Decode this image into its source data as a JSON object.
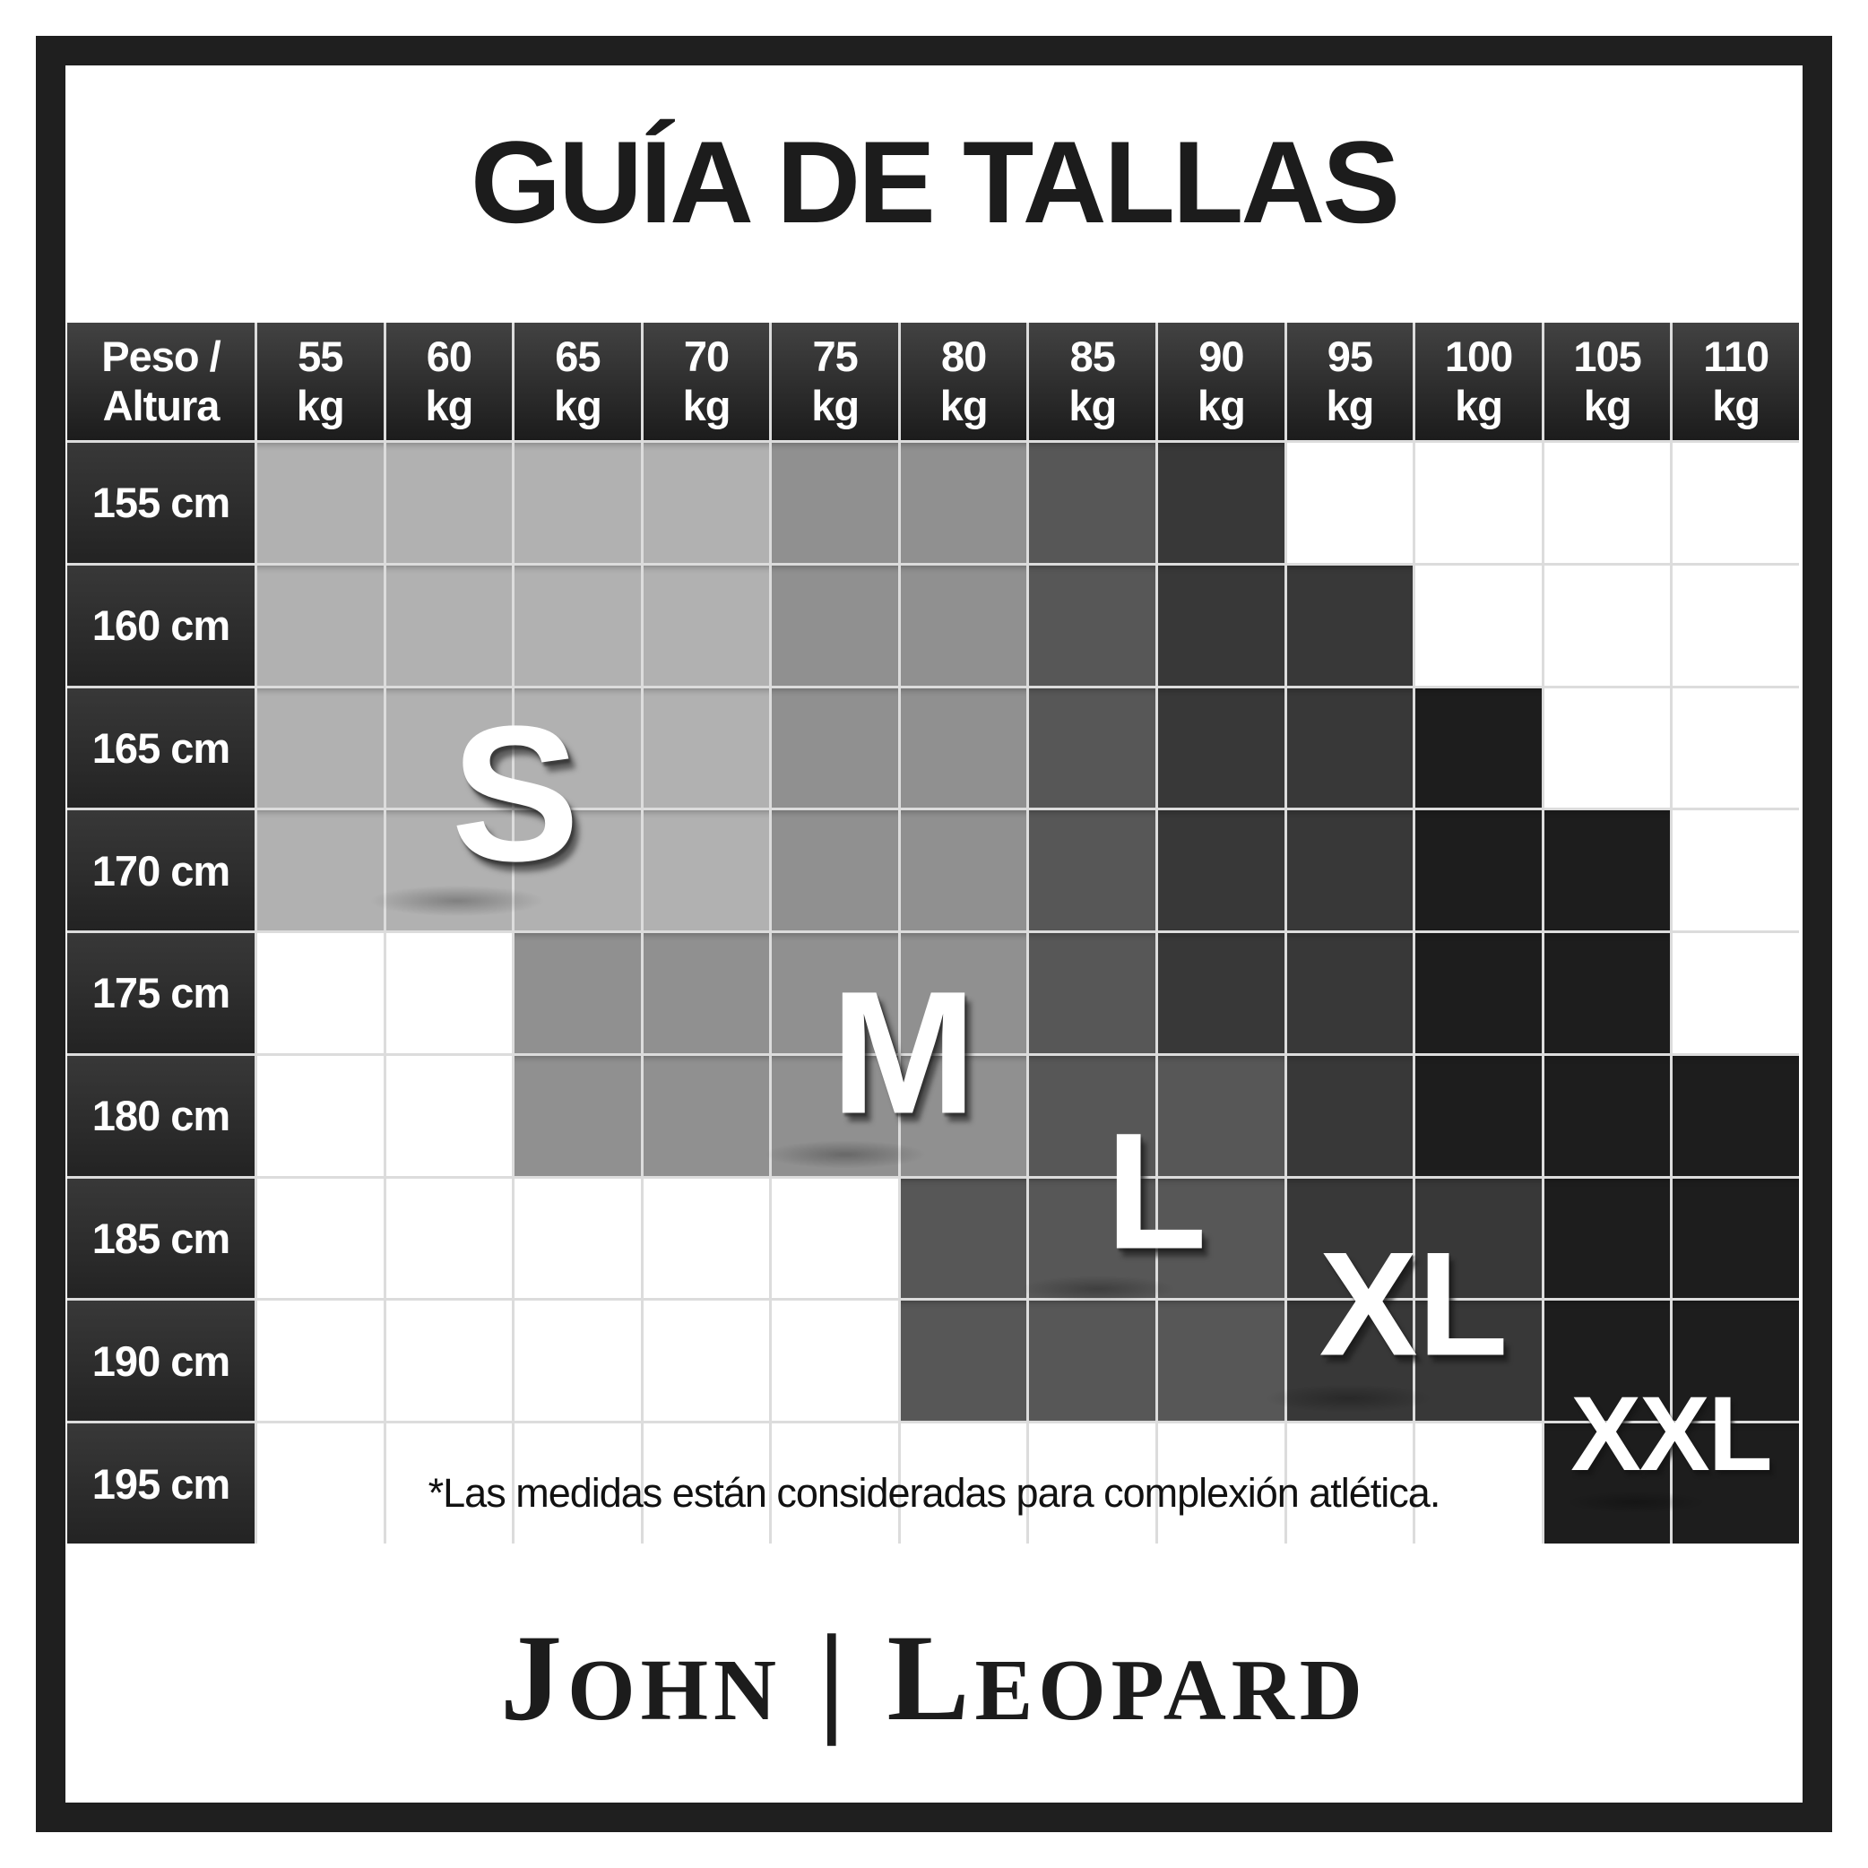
{
  "title": "GUÍA DE TALLAS",
  "header": {
    "corner_line1": "Peso /",
    "corner_line2": "Altura",
    "weight_unit": "kg",
    "height_unit": "cm"
  },
  "chart_data": {
    "type": "heatmap",
    "title": "GUÍA DE TALLAS",
    "xlabel": "Peso (kg)",
    "ylabel": "Altura (cm)",
    "weights_kg": [
      55,
      60,
      65,
      70,
      75,
      80,
      85,
      90,
      95,
      100,
      105,
      110
    ],
    "heights_cm": [
      155,
      160,
      165,
      170,
      175,
      180,
      185,
      190,
      195
    ],
    "size_labels": [
      "S",
      "M",
      "L",
      "XL",
      "XXL"
    ],
    "sizes_matrix": [
      [
        "S",
        "S",
        "S",
        "S",
        "M",
        "M",
        "L",
        "XL",
        "",
        "",
        "",
        ""
      ],
      [
        "S",
        "S",
        "S",
        "S",
        "M",
        "M",
        "L",
        "XL",
        "XL",
        "",
        "",
        ""
      ],
      [
        "S",
        "S",
        "S",
        "S",
        "M",
        "M",
        "L",
        "XL",
        "XL",
        "XXL",
        "",
        ""
      ],
      [
        "S",
        "S",
        "S",
        "S",
        "M",
        "M",
        "L",
        "XL",
        "XL",
        "XXL",
        "XXL",
        ""
      ],
      [
        "",
        "",
        "M",
        "M",
        "M",
        "M",
        "L",
        "XL",
        "XL",
        "XXL",
        "XXL",
        ""
      ],
      [
        "",
        "",
        "M",
        "M",
        "M",
        "M",
        "L",
        "L",
        "XL",
        "XXL",
        "XXL",
        "XXL"
      ],
      [
        "",
        "",
        "",
        "",
        "",
        "L",
        "L",
        "L",
        "XL",
        "XL",
        "XXL",
        "XXL"
      ],
      [
        "",
        "",
        "",
        "",
        "",
        "L",
        "L",
        "L",
        "XL",
        "XL",
        "XXL",
        "XXL"
      ],
      [
        "",
        "",
        "",
        "",
        "",
        "",
        "",
        "",
        "",
        "",
        "XXL",
        "XXL"
      ]
    ],
    "size_colors": {
      "S": "#b1b1b1",
      "M": "#909090",
      "L": "#575757",
      "XL": "#383838",
      "XXL": "#1d1d1d",
      "empty": "#ffffff"
    },
    "legend_position": "in-cell-labels",
    "grid": true
  },
  "colors": {
    "frame": "#1f1f1f",
    "header_gradient_top": "#424242",
    "header_gradient_bottom": "#1c1c1c",
    "grid_line": "#dcdcdc",
    "text_dark": "#1c1c1c",
    "text_light": "#ffffff"
  },
  "footnote": "*Las medidas están consideradas para complexión atlética.",
  "brand": "John | Leopard"
}
